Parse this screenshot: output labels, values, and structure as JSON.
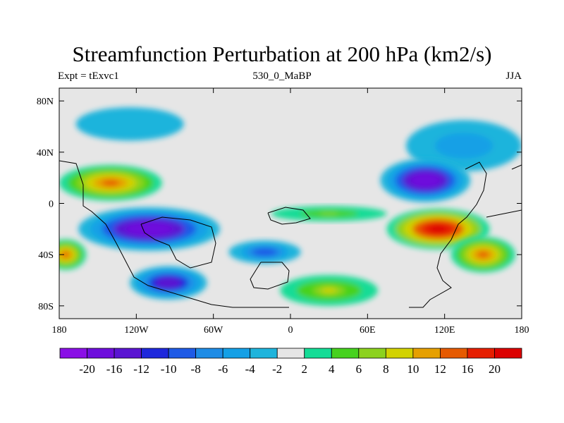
{
  "title": "Streamfunction Perturbation at 200 hPa (km2/s)",
  "left_string": "Expt = tExvc1",
  "center_string": "530_0_MaBP",
  "right_string": "JJA",
  "chart_data": {
    "type": "heatmap",
    "title": "Streamfunction Perturbation at 200 hPa (km2/s)",
    "xlim": [
      -180,
      180
    ],
    "ylim": [
      -90,
      90
    ],
    "x_ticks": [
      {
        "value": -180,
        "label": "180"
      },
      {
        "value": -120,
        "label": "120W"
      },
      {
        "value": -60,
        "label": "60W"
      },
      {
        "value": 0,
        "label": "0"
      },
      {
        "value": 60,
        "label": "60E"
      },
      {
        "value": 120,
        "label": "120E"
      },
      {
        "value": 180,
        "label": "180"
      }
    ],
    "y_ticks": [
      {
        "value": 80,
        "label": "80N"
      },
      {
        "value": 40,
        "label": "40N"
      },
      {
        "value": 0,
        "label": "0"
      },
      {
        "value": -40,
        "label": "40S"
      },
      {
        "value": -80,
        "label": "80S"
      }
    ],
    "colorbar": {
      "labels": [
        "-20",
        "-16",
        "-12",
        "-10",
        "-8",
        "-6",
        "-4",
        "-2",
        "2",
        "4",
        "6",
        "8",
        "10",
        "12",
        "16",
        "20"
      ],
      "colors": [
        "#8a0fe6",
        "#6e0ddc",
        "#5a14d2",
        "#1e28dc",
        "#1e5ae6",
        "#1e8ce6",
        "#14a0e6",
        "#1eb4dc",
        "#e6e6e6",
        "#14dc96",
        "#46d21e",
        "#8cd21e",
        "#d2d200",
        "#e6a000",
        "#e65a00",
        "#e61e00",
        "#dc0000"
      ]
    },
    "features": [
      {
        "name": "north-pacific-negative",
        "lon": -125,
        "lat": 62,
        "rlon": 42,
        "rlat": 13,
        "value": -4
      },
      {
        "name": "nw-pacific-negative",
        "lon": 135,
        "lat": 45,
        "rlon": 45,
        "rlat": 20,
        "value": -6
      },
      {
        "name": "north-central-pacific-positive",
        "lon": -140,
        "lat": 16,
        "rlon": 40,
        "rlat": 14,
        "value": 14
      },
      {
        "name": "asia-negative",
        "lon": 105,
        "lat": 18,
        "rlon": 35,
        "rlat": 17,
        "value": -20
      },
      {
        "name": "south-pacific-negative",
        "lon": -110,
        "lat": -20,
        "rlon": 55,
        "rlat": 17,
        "value": -20
      },
      {
        "name": "south-atlantic-negative",
        "lon": -20,
        "lat": -38,
        "rlon": 28,
        "rlat": 9,
        "value": -10
      },
      {
        "name": "sw-pacific-negative",
        "lon": -95,
        "lat": -62,
        "rlon": 30,
        "rlat": 13,
        "value": -16
      },
      {
        "name": "indo-pacific-positive",
        "lon": 115,
        "lat": -20,
        "rlon": 40,
        "rlat": 16,
        "value": 20
      },
      {
        "name": "australia-positive",
        "lon": 150,
        "lat": -40,
        "rlon": 25,
        "rlat": 14,
        "value": 14
      },
      {
        "name": "dateline-south-positive",
        "lon": -175,
        "lat": -40,
        "rlon": 16,
        "rlat": 12,
        "value": 12
      },
      {
        "name": "southern-ocean-positive",
        "lon": 30,
        "lat": -68,
        "rlon": 38,
        "rlat": 12,
        "value": 8
      },
      {
        "name": "equatorial-atlantic-positive",
        "lon": 30,
        "lat": -8,
        "rlon": 45,
        "rlat": 6,
        "value": 6
      }
    ]
  }
}
